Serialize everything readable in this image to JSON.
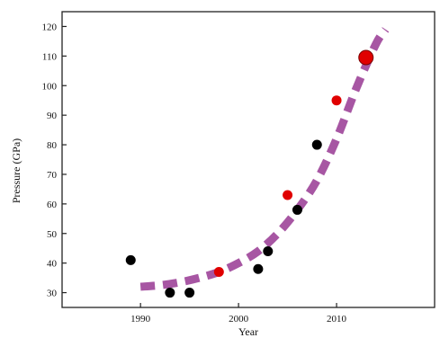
{
  "chart_data": {
    "type": "scatter",
    "xlabel": "Year",
    "ylabel": "Pressure (GPa)",
    "xlim": [
      1982,
      2020
    ],
    "ylim": [
      25,
      125
    ],
    "x_ticks": [
      1990,
      2000,
      2010
    ],
    "y_ticks": [
      30,
      40,
      50,
      60,
      70,
      80,
      90,
      100,
      110,
      120
    ],
    "grid": false,
    "legend": "none",
    "series": [
      {
        "marker_color": "#000000",
        "points": [
          {
            "x": 1989,
            "y": 41
          },
          {
            "x": 1993,
            "y": 30
          },
          {
            "x": 1995,
            "y": 30
          },
          {
            "x": 2002,
            "y": 38
          },
          {
            "x": 2003,
            "y": 44
          },
          {
            "x": 2006,
            "y": 58
          },
          {
            "x": 2008,
            "y": 80
          }
        ]
      },
      {
        "marker_color": "#e00000",
        "points": [
          {
            "x": 1998,
            "y": 37
          },
          {
            "x": 2005,
            "y": 63
          },
          {
            "x": 2010,
            "y": 95
          },
          {
            "x": 2013,
            "y": 109.5,
            "large": true
          }
        ]
      }
    ],
    "trend": {
      "style": "dashed",
      "color": "#a24d9e",
      "points": [
        {
          "x": 1990,
          "y": 32
        },
        {
          "x": 1992,
          "y": 32.5
        },
        {
          "x": 1994,
          "y": 33.5
        },
        {
          "x": 1996,
          "y": 35
        },
        {
          "x": 1998,
          "y": 37
        },
        {
          "x": 2000,
          "y": 40
        },
        {
          "x": 2002,
          "y": 44
        },
        {
          "x": 2004,
          "y": 50
        },
        {
          "x": 2006,
          "y": 58
        },
        {
          "x": 2008,
          "y": 68
        },
        {
          "x": 2010,
          "y": 82
        },
        {
          "x": 2012,
          "y": 99
        },
        {
          "x": 2014,
          "y": 114
        },
        {
          "x": 2015,
          "y": 119
        }
      ]
    }
  }
}
